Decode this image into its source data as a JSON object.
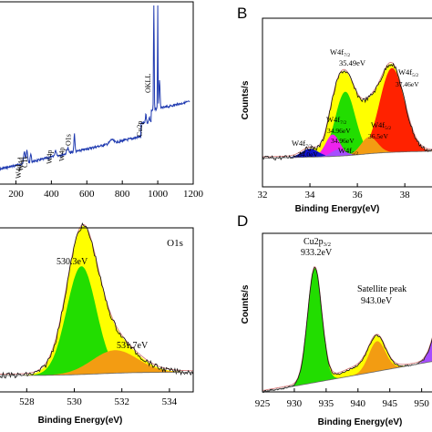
{
  "colors": {
    "green": "#22dd00",
    "yellow": "#ffff00",
    "red": "#ff2200",
    "orange": "#f39c12",
    "magenta": "#ee22ee",
    "blue": "#1111cc",
    "purple": "#a64dff",
    "survey": "#1f3ab0",
    "envelope": "#d98080",
    "raw": "#111111"
  },
  "chart_data": [
    {
      "panel": "A",
      "type": "line",
      "xticks": [
        "200",
        "400",
        "600",
        "800",
        "1000",
        "1200"
      ],
      "xlim": [
        100,
        1200
      ],
      "peak_labels": [
        {
          "text": "W4d",
          "x": 248
        },
        {
          "text": "W4d",
          "x": 262
        },
        {
          "text": "C1s",
          "x": 284
        },
        {
          "text": "W4p",
          "x": 424
        },
        {
          "text": "W4p",
          "x": 492
        },
        {
          "text": "O1s",
          "x": 530
        },
        {
          "text": "Cu2p",
          "x": 933
        },
        {
          "text": "OKLL",
          "x": 978
        }
      ]
    },
    {
      "panel": "B",
      "type": "area",
      "letter": "B",
      "xlabel": "Binding Energy(eV)",
      "ylabel": "Counts/s",
      "xticks": [
        "32",
        "34",
        "36",
        "38"
      ],
      "xlim": [
        32,
        39.3
      ],
      "peaks": [
        {
          "label": "W4f",
          "sub": "7/2",
          "value": "35.49eV",
          "center": 35.49,
          "height": 0.74,
          "color_key": "green"
        },
        {
          "label": "W4f",
          "sub": "5/2",
          "value": "37.46eV",
          "center": 37.46,
          "height": 0.82,
          "color_key": "red"
        },
        {
          "label": "W4f",
          "sub": "7/2",
          "value": "34.96eV",
          "center": 34.96,
          "height": 0.26,
          "color_key": "magenta"
        },
        {
          "label": "W4f",
          "sub": "5/2",
          "value": "36.5eV",
          "center": 36.5,
          "height": 0.2,
          "color_key": "orange"
        },
        {
          "label": "W4f",
          "sub": "7/2",
          "value": "34.0eV",
          "center": 34.0,
          "height": 0.1,
          "color_key": "blue"
        },
        {
          "label": "W4f",
          "sub": "5/2",
          "value": "",
          "center": 35.2,
          "height": 0.08,
          "color_key": "purple"
        }
      ]
    },
    {
      "panel": "C",
      "type": "area",
      "title": "O1s",
      "xlabel": "Binding Energy(eV)",
      "xticks": [
        "528",
        "530",
        "532",
        "534"
      ],
      "xlim": [
        526.8,
        535
      ],
      "peaks": [
        {
          "value": "530.3eV",
          "center": 530.3,
          "height": 0.86,
          "color_key": "green"
        },
        {
          "value": "531.7eV",
          "center": 531.7,
          "height": 0.22,
          "color_key": "orange"
        }
      ]
    },
    {
      "panel": "D",
      "type": "area",
      "letter": "D",
      "xlabel": "Binding Energy(eV)",
      "ylabel": "Counts/s",
      "xticks": [
        "925",
        "930",
        "935",
        "940",
        "945",
        "950"
      ],
      "xlim": [
        925,
        952.2
      ],
      "peaks": [
        {
          "label": "Cu2p",
          "sub": "3/2",
          "value": "933.2eV",
          "center": 933.2,
          "height": 0.78,
          "color_key": "green"
        },
        {
          "label": "Satellite peak",
          "sub": "",
          "value": "943.0eV",
          "center": 943.0,
          "height": 0.24,
          "color_key": "orange"
        },
        {
          "label": "",
          "sub": "",
          "value": "",
          "center": 953.0,
          "height": 0.3,
          "color_key": "purple"
        }
      ]
    }
  ]
}
